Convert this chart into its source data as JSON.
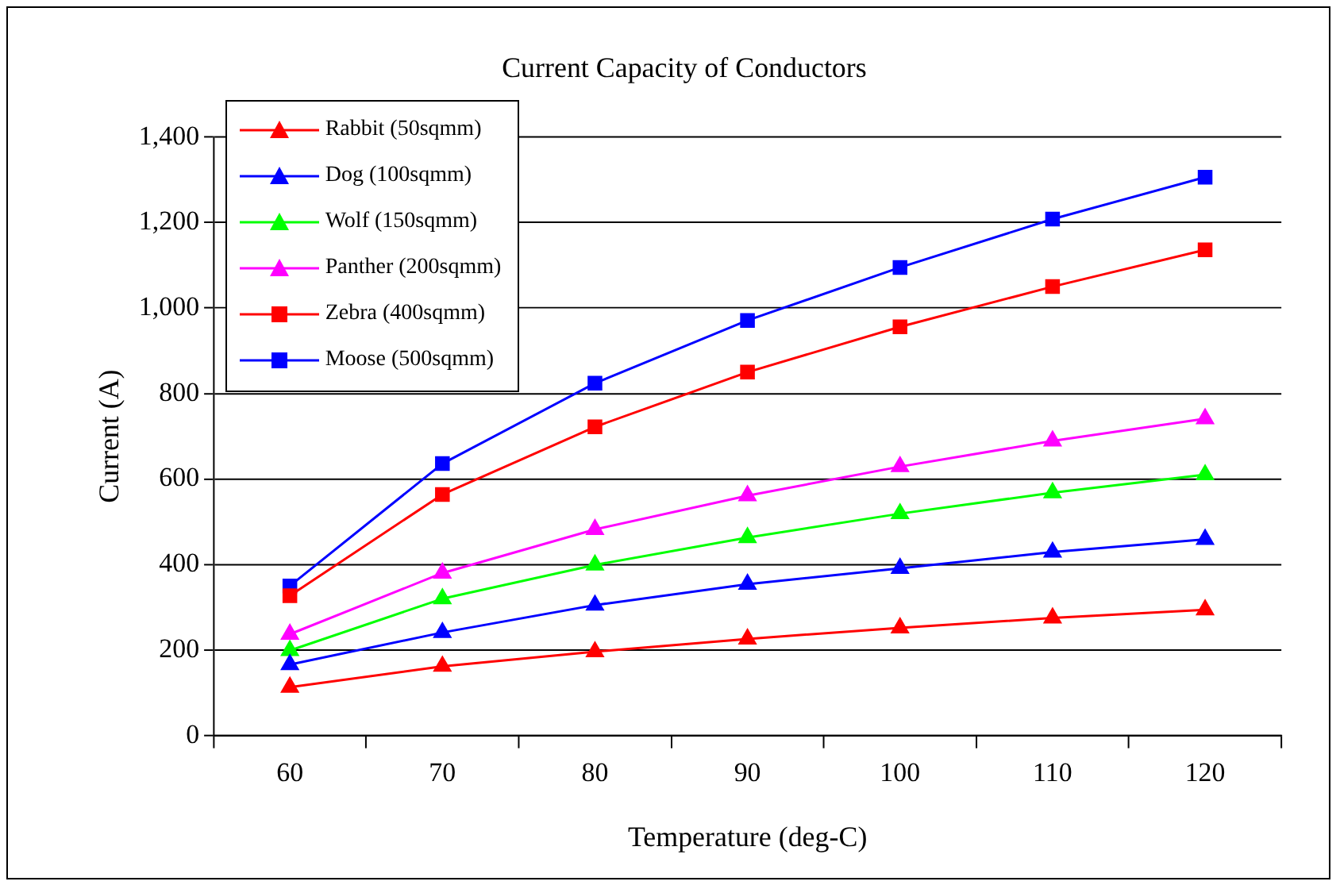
{
  "chart_data": {
    "type": "line",
    "title": "Current Capacity of Conductors",
    "xlabel": "Temperature (deg-C)",
    "ylabel": "Current (A)",
    "categories": [
      "60",
      "70",
      "80",
      "90",
      "100",
      "110",
      "120"
    ],
    "ylim": [
      0,
      1400
    ],
    "yticks": [
      0,
      {
        "value": 200,
        "label": "200"
      },
      {
        "value": 400,
        "label": "400"
      },
      {
        "value": 600,
        "label": "600"
      },
      {
        "value": 800,
        "label": "800"
      },
      {
        "value": 1000,
        "label": "1,000"
      },
      {
        "value": 1200,
        "label": "1,200"
      },
      {
        "value": 1400,
        "label": "1,400"
      }
    ],
    "grid": "y",
    "legend": "top left",
    "line_style": "solid",
    "series": [
      {
        "name": "Rabbit (50sqmm)",
        "color": "#ff0000",
        "marker": "triangle",
        "values": [
          113,
          162,
          196,
          226,
          252,
          275,
          294
        ]
      },
      {
        "name": "Dog (100sqmm)",
        "color": "#0000ff",
        "marker": "triangle",
        "values": [
          166,
          241,
          305,
          354,
          391,
          429,
          459
        ]
      },
      {
        "name": "Wolf (150sqmm)",
        "color": "#00ff00",
        "marker": "triangle",
        "values": [
          199,
          320,
          399,
          463,
          519,
          568,
          610
        ]
      },
      {
        "name": "Panther (200sqmm)",
        "color": "#ff00ff",
        "marker": "triangle",
        "values": [
          237,
          380,
          482,
          561,
          629,
          689,
          741
        ]
      },
      {
        "name": "Zebra (400sqmm)",
        "color": "#ff0000",
        "marker": "square",
        "values": [
          327,
          564,
          722,
          850,
          956,
          1050,
          1136
        ]
      },
      {
        "name": "Moose (500sqmm)",
        "color": "#0000ff",
        "marker": "square",
        "values": [
          350,
          636,
          824,
          971,
          1095,
          1208,
          1306
        ]
      }
    ]
  }
}
